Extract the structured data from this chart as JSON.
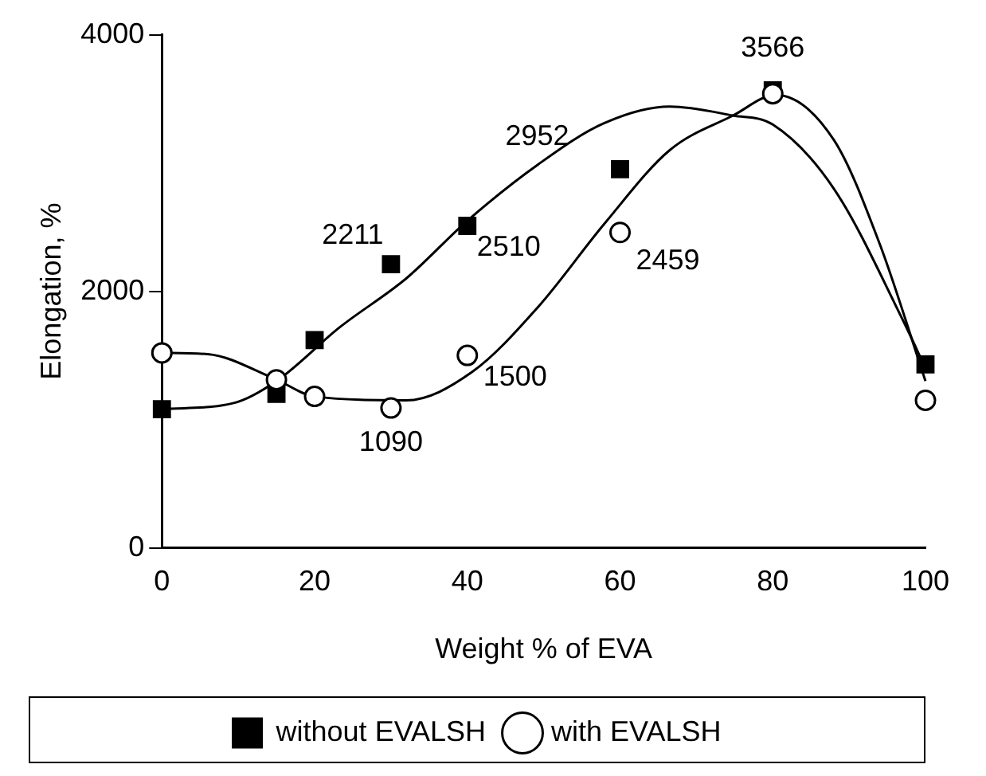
{
  "chart_data": {
    "type": "scatter",
    "xlabel": "Weight % of EVA",
    "ylabel": "Elongation, %",
    "xlim": [
      0,
      100
    ],
    "xticks": [
      0,
      20,
      40,
      60,
      80,
      100
    ],
    "ylim": [
      0,
      4000
    ],
    "yticks": [
      0,
      2000,
      4000
    ],
    "grid": false,
    "legend": "bottom",
    "series": [
      {
        "name": "without EVALSH",
        "marker": "square",
        "color": "#000000",
        "x": [
          0,
          15,
          20,
          30,
          40,
          60,
          80,
          100
        ],
        "values": [
          1080,
          1200,
          1620,
          2211,
          2510,
          2952,
          3566,
          1430
        ],
        "value_labels": [
          null,
          null,
          null,
          "2211",
          "2510",
          "2952",
          "3566",
          null
        ]
      },
      {
        "name": "with EVALSH",
        "marker": "circle",
        "color": "#000000",
        "x": [
          0,
          15,
          20,
          30,
          40,
          60,
          80,
          100
        ],
        "values": [
          1520,
          1310,
          1180,
          1090,
          1500,
          2459,
          3540,
          1150
        ],
        "value_labels": [
          null,
          null,
          null,
          "1090",
          "1500",
          "2459",
          null,
          null
        ]
      },
      {
        "type": "line",
        "marker": "none",
        "color": "#000000",
        "x": [
          0,
          9.5,
          15,
          23.3,
          32,
          40,
          49.3,
          57.9,
          66.5,
          74.8,
          80,
          88,
          97,
          100
        ],
        "values": [
          1080,
          1130,
          1300,
          1720,
          2100,
          2550,
          2990,
          3310,
          3440,
          3370,
          3300,
          2800,
          1780,
          1400
        ]
      },
      {
        "type": "line",
        "marker": "none",
        "color": "#000000",
        "x": [
          0,
          6,
          14.7,
          20,
          32,
          40.6,
          49.3,
          58,
          66.5,
          74.8,
          80.4,
          88,
          94,
          100
        ],
        "values": [
          1520,
          1510,
          1320,
          1180,
          1150,
          1370,
          1880,
          2530,
          3100,
          3370,
          3530,
          3180,
          2370,
          1300
        ]
      }
    ]
  }
}
